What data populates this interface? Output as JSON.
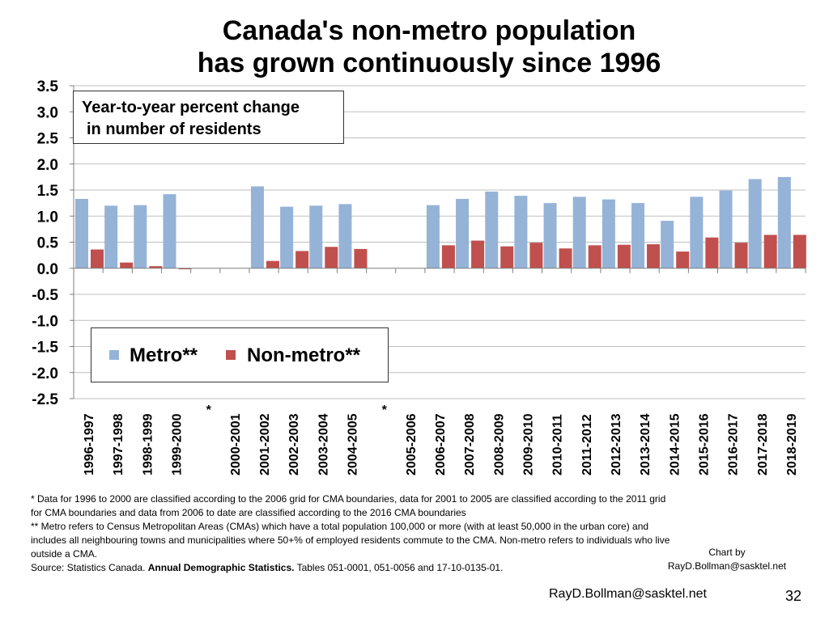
{
  "title": {
    "line1": "Canada's non-metro population",
    "line2": "has grown continuously since 1996"
  },
  "annotation_box": {
    "line1": "Year-to-year percent change",
    "line2": "in number of residents"
  },
  "colors": {
    "metro": "#95b3d7",
    "non_metro": "#c0504d",
    "grid": "#bfbfbf",
    "axis": "#7f7f7f"
  },
  "chart_data": {
    "type": "bar",
    "title": "Canada's non-metro population has grown continuously since 1996",
    "xlabel": "",
    "ylabel": "Year-to-year percent change in number of residents",
    "ylim": [
      -2.5,
      3.5
    ],
    "yticks": [
      3.5,
      3.0,
      2.5,
      2.0,
      1.5,
      1.0,
      0.5,
      0.0,
      -0.5,
      -1.0,
      -1.5,
      -2.0,
      -2.5
    ],
    "ytick_labels": [
      "3.5",
      "3.0",
      "2.5",
      "2.0",
      "1.5",
      "1.0",
      "0.5",
      "0.0",
      "-0.5",
      "-1.0",
      "-1.5",
      "-2.0",
      "-2.5"
    ],
    "grid": true,
    "legend_position": "lower-left",
    "categories": [
      "1996-1997",
      "1997-1998",
      "1998-1999",
      "1999-2000",
      "*",
      "2000-2001",
      "2001-2002",
      "2002-2003",
      "2003-2004",
      "2004-2005",
      "*",
      "2005-2006",
      "2006-2007",
      "2007-2008",
      "2008-2009",
      "2009-2010",
      "2010-2011",
      "2011-2012",
      "2012-2013",
      "2013-2014",
      "2014-2015",
      "2015-2016",
      "2016-2017",
      "2017-2018",
      "2018-2019"
    ],
    "series": [
      {
        "name": "Metro**",
        "color": "#95b3d7",
        "values": [
          1.33,
          1.2,
          1.21,
          1.42,
          null,
          0.0,
          1.57,
          1.18,
          1.2,
          1.23,
          null,
          0.0,
          1.21,
          1.33,
          1.47,
          1.39,
          1.25,
          1.37,
          1.32,
          1.25,
          0.91,
          1.37,
          1.49,
          1.71,
          1.75
        ]
      },
      {
        "name": "Non-metro**",
        "color": "#c0504d",
        "values": [
          0.36,
          0.11,
          0.04,
          -0.02,
          null,
          0.0,
          0.14,
          0.33,
          0.41,
          0.37,
          null,
          0.0,
          0.44,
          0.53,
          0.42,
          0.49,
          0.38,
          0.44,
          0.45,
          0.46,
          0.32,
          0.59,
          0.49,
          0.64,
          0.64
        ]
      }
    ]
  },
  "footnotes": {
    "line1": "* Data for 1996 to 2000 are classified according to the 2006 grid for CMA boundaries, data for 2001 to 2005 are classified according to the 2011 grid",
    "line2": "for CMA boundaries and data from 2006 to date are classified according to the 2016 CMA boundaries",
    "line3": "** Metro refers to Census Metropolitan Areas (CMAs) which have a total population 100,000 or more (with at least 50,000 in the urban core) and",
    "line4": "includes all neighbouring towns and municipalities where 50+% of employed residents commute to the CMA. Non-metro refers to individuals who live",
    "line5": "outside a CMA.",
    "source_prefix": "Source: Statistics Canada.",
    "source_bold": "Annual Demographic Statistics.",
    "source_suffix": "Tables 051-0001, 051-0056 and 17-10-0135-01."
  },
  "credit": {
    "line1": "Chart by",
    "line2": "RayD.Bollman@sasktel.net"
  },
  "email": "RayD.Bollman@sasktel.net",
  "page_number": "32"
}
